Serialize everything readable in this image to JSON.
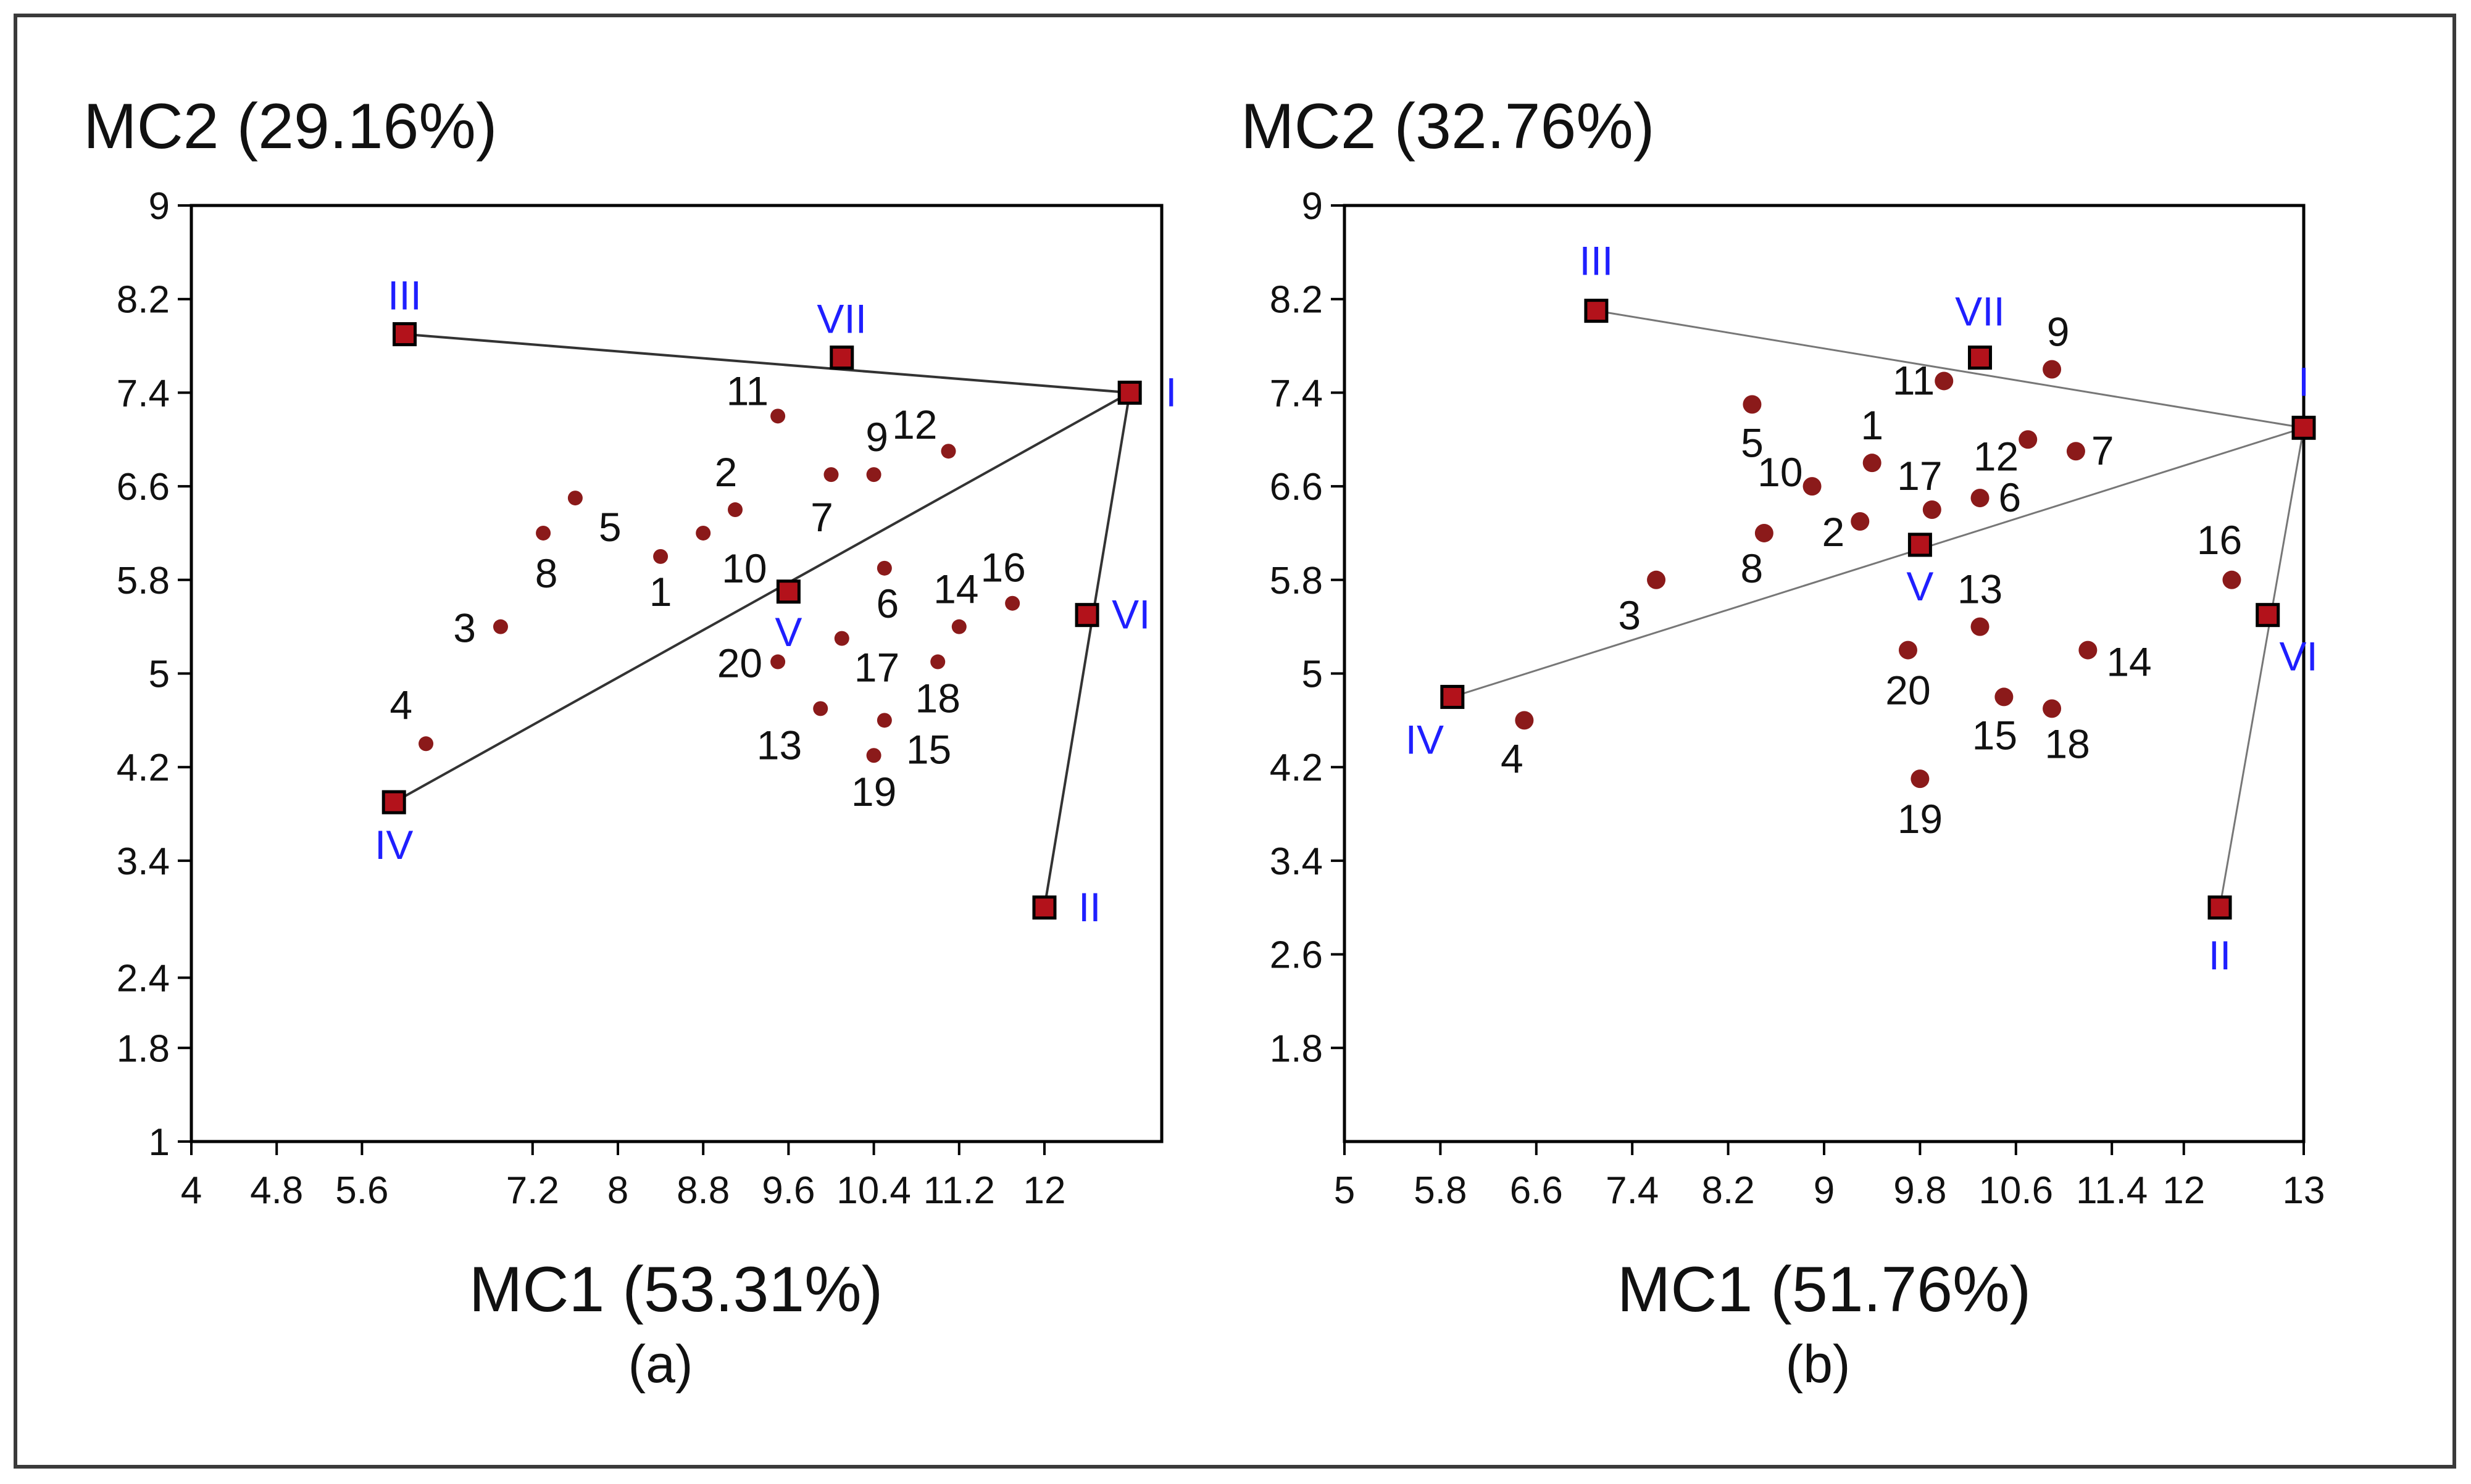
{
  "colors": {
    "obs_point": "#8b1a1a",
    "env_fill": "#b3121b",
    "env_label": "#1f1fff",
    "text": "#111111",
    "line": "#333333",
    "axis": "#000000"
  },
  "chart_data": [
    {
      "type": "scatter",
      "subtitle": "(a)",
      "xlabel": "MC1 (53.31%)",
      "ylabel": "MC2 (29.16%)",
      "xlim": [
        4,
        13.1
      ],
      "ylim": [
        1,
        9
      ],
      "x_ticks": [
        "4",
        "4.8",
        "5.6",
        "7.2",
        "8",
        "8.8",
        "9.6",
        "10.4",
        "11.2",
        "12"
      ],
      "y_ticks": [
        "1",
        "1.8",
        "2.4",
        "3.4",
        "4.2",
        "5",
        "5.8",
        "6.6",
        "7.4",
        "8.2",
        "9"
      ],
      "grid": false,
      "series": [
        {
          "name": "",
          "kind": "observations",
          "points": [
            {
              "label": "1",
              "x": 8.4,
              "y": 6.0
            },
            {
              "label": "2",
              "x": 9.1,
              "y": 6.4
            },
            {
              "label": "3",
              "x": 6.9,
              "y": 5.4
            },
            {
              "label": "4",
              "x": 6.2,
              "y": 4.4
            },
            {
              "label": "5",
              "x": 7.6,
              "y": 6.5
            },
            {
              "label": "6",
              "x": 10.5,
              "y": 5.9
            },
            {
              "label": "7",
              "x": 10.0,
              "y": 6.7
            },
            {
              "label": "8",
              "x": 7.3,
              "y": 6.2
            },
            {
              "label": "9",
              "x": 10.4,
              "y": 6.7
            },
            {
              "label": "10",
              "x": 8.8,
              "y": 6.2
            },
            {
              "label": "11",
              "x": 9.5,
              "y": 7.2
            },
            {
              "label": "12",
              "x": 11.1,
              "y": 6.9
            },
            {
              "label": "13",
              "x": 9.9,
              "y": 4.7
            },
            {
              "label": "14",
              "x": 11.2,
              "y": 5.4
            },
            {
              "label": "15",
              "x": 10.5,
              "y": 4.6
            },
            {
              "label": "16",
              "x": 11.7,
              "y": 5.6
            },
            {
              "label": "17",
              "x": 10.1,
              "y": 5.3
            },
            {
              "label": "18",
              "x": 11.0,
              "y": 5.1
            },
            {
              "label": "19",
              "x": 10.4,
              "y": 4.3
            },
            {
              "label": "20",
              "x": 9.5,
              "y": 5.1
            }
          ]
        },
        {
          "name": "",
          "kind": "environments",
          "points": [
            {
              "label": "I",
              "x": 12.8,
              "y": 7.4
            },
            {
              "label": "II",
              "x": 12.0,
              "y": 3.0
            },
            {
              "label": "III",
              "x": 6.0,
              "y": 7.9
            },
            {
              "label": "IV",
              "x": 5.9,
              "y": 3.9
            },
            {
              "label": "V",
              "x": 9.6,
              "y": 5.7
            },
            {
              "label": "VI",
              "x": 12.4,
              "y": 5.5
            },
            {
              "label": "VII",
              "x": 10.1,
              "y": 7.7
            }
          ]
        }
      ],
      "connections": [
        [
          "III",
          "I"
        ],
        [
          "IV",
          "I"
        ],
        [
          "I",
          "II"
        ]
      ]
    },
    {
      "type": "scatter",
      "subtitle": "(b)",
      "xlabel": "MC1 (51.76%)",
      "ylabel": "MC2 (32.76%)",
      "xlim": [
        5,
        13
      ],
      "ylim": [
        1,
        9
      ],
      "x_ticks": [
        "5",
        "5.8",
        "6.6",
        "7.4",
        "8.2",
        "9",
        "9.8",
        "10.6",
        "11.4",
        "12",
        "13"
      ],
      "y_ticks": [
        "1.8",
        "2.6",
        "3.4",
        "4.2",
        "5",
        "5.8",
        "6.6",
        "7.4",
        "8.2",
        "9"
      ],
      "grid": false,
      "series": [
        {
          "name": "",
          "kind": "observations",
          "points": [
            {
              "label": "1",
              "x": 9.4,
              "y": 6.8
            },
            {
              "label": "2",
              "x": 9.3,
              "y": 6.3
            },
            {
              "label": "3",
              "x": 7.6,
              "y": 5.8
            },
            {
              "label": "4",
              "x": 6.5,
              "y": 4.6
            },
            {
              "label": "5",
              "x": 8.4,
              "y": 7.3
            },
            {
              "label": "6",
              "x": 10.3,
              "y": 6.5
            },
            {
              "label": "7",
              "x": 11.1,
              "y": 6.9
            },
            {
              "label": "8",
              "x": 8.5,
              "y": 6.2
            },
            {
              "label": "9",
              "x": 10.9,
              "y": 7.6
            },
            {
              "label": "10",
              "x": 8.9,
              "y": 6.6
            },
            {
              "label": "11",
              "x": 10.0,
              "y": 7.5
            },
            {
              "label": "12",
              "x": 10.7,
              "y": 7.0
            },
            {
              "label": "13",
              "x": 10.3,
              "y": 5.4
            },
            {
              "label": "14",
              "x": 11.2,
              "y": 5.2
            },
            {
              "label": "15",
              "x": 10.5,
              "y": 4.8
            },
            {
              "label": "16",
              "x": 12.4,
              "y": 5.8
            },
            {
              "label": "17",
              "x": 9.9,
              "y": 6.4
            },
            {
              "label": "18",
              "x": 10.9,
              "y": 4.7
            },
            {
              "label": "19",
              "x": 9.8,
              "y": 4.1
            },
            {
              "label": "20",
              "x": 9.7,
              "y": 5.2
            }
          ]
        },
        {
          "name": "",
          "kind": "environments",
          "points": [
            {
              "label": "I",
              "x": 13.0,
              "y": 7.1
            },
            {
              "label": "II",
              "x": 12.3,
              "y": 3.0
            },
            {
              "label": "III",
              "x": 7.1,
              "y": 8.1
            },
            {
              "label": "IV",
              "x": 5.9,
              "y": 4.8
            },
            {
              "label": "V",
              "x": 9.8,
              "y": 6.1
            },
            {
              "label": "VI",
              "x": 12.7,
              "y": 5.5
            },
            {
              "label": "VII",
              "x": 10.3,
              "y": 7.7
            }
          ]
        }
      ],
      "connections": [
        [
          "III",
          "I"
        ],
        [
          "IV",
          "I"
        ],
        [
          "I",
          "II"
        ]
      ]
    }
  ]
}
